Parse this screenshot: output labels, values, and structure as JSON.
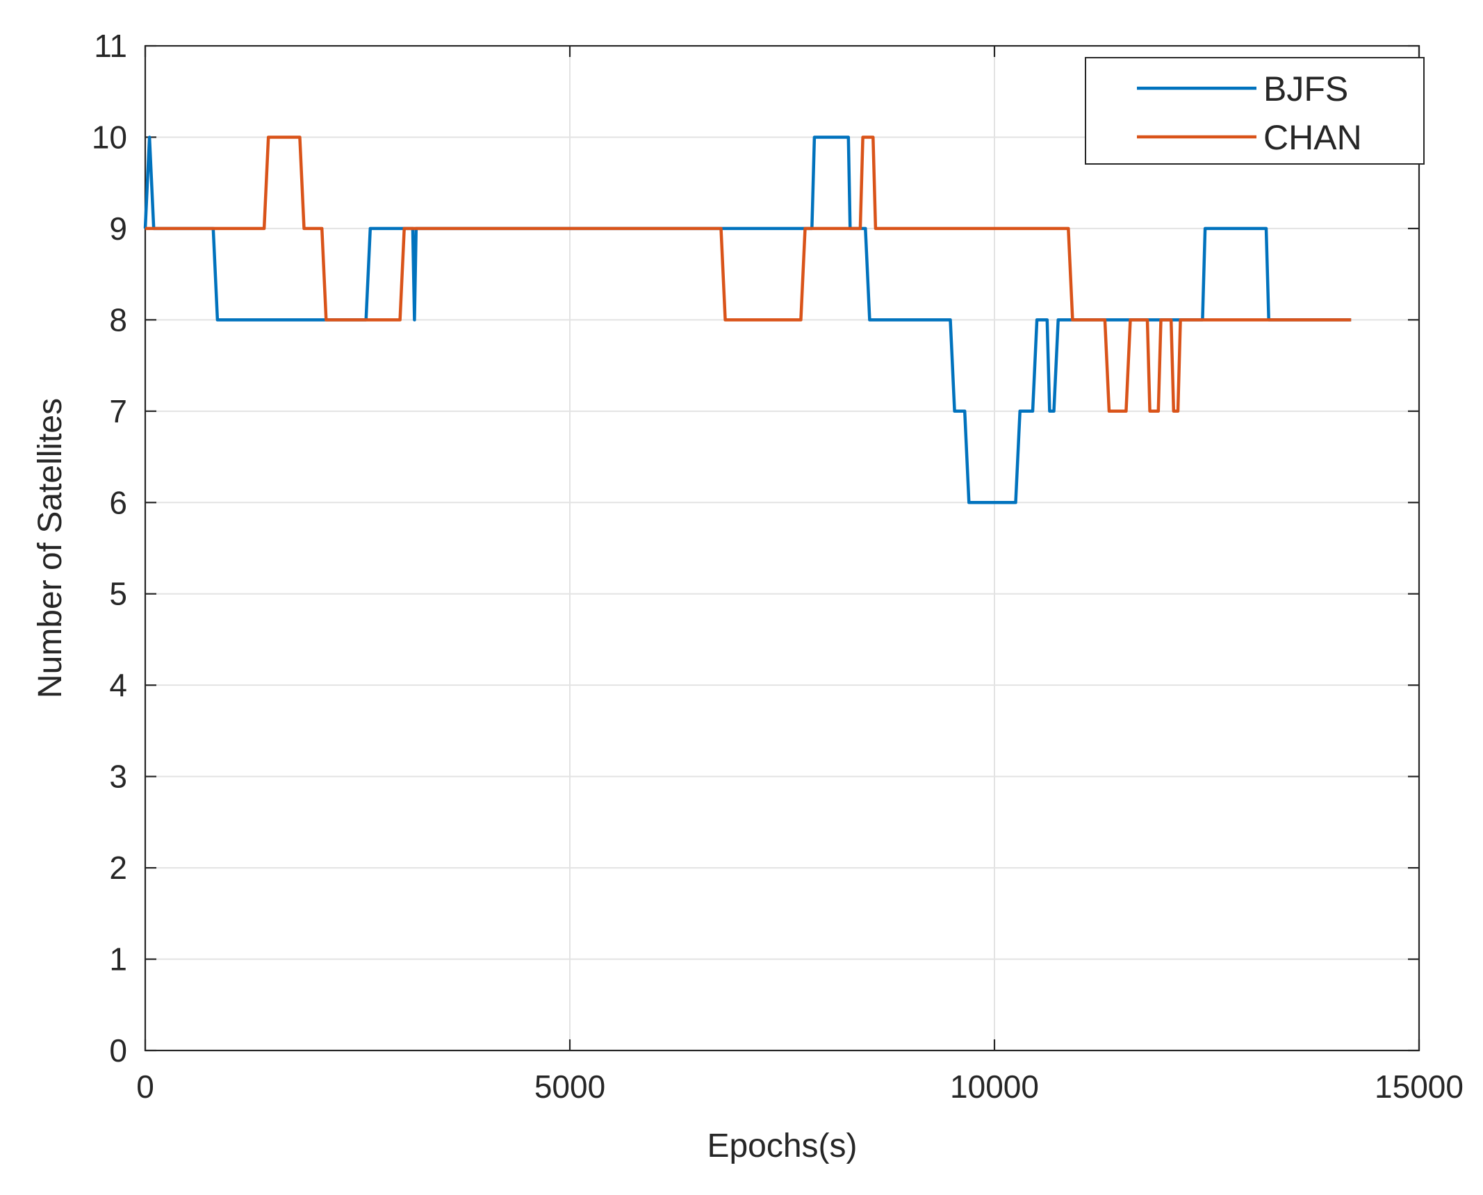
{
  "chart_data": {
    "type": "line",
    "title": "",
    "xlabel": "Epochs(s)",
    "ylabel": "Number of Satellites",
    "xlim": [
      0,
      15000
    ],
    "ylim": [
      0,
      11
    ],
    "xticks": [
      0,
      5000,
      10000,
      15000
    ],
    "yticks": [
      0,
      1,
      2,
      3,
      4,
      5,
      6,
      7,
      8,
      9,
      10,
      11
    ],
    "xtick_labels": [
      "0",
      "5000",
      "10000",
      "15000"
    ],
    "ytick_labels": [
      "0",
      "1",
      "2",
      "3",
      "4",
      "5",
      "6",
      "7",
      "8",
      "9",
      "10",
      "11"
    ],
    "grid": true,
    "legend_position": "top-right",
    "series": [
      {
        "name": "BJFS",
        "color": "#0072BD",
        "x": [
          0,
          50,
          100,
          800,
          850,
          2600,
          2650,
          3150,
          3170,
          3190,
          3210,
          7850,
          7880,
          8280,
          8300,
          8480,
          8530,
          9480,
          9530,
          9650,
          9700,
          10250,
          10300,
          10450,
          10500,
          10620,
          10650,
          10700,
          10750,
          10850,
          12450,
          12480,
          13200,
          13230,
          14200
        ],
        "y": [
          9,
          10,
          9,
          9,
          8,
          8,
          9,
          9,
          8,
          9,
          9,
          9,
          10,
          10,
          9,
          9,
          8,
          8,
          7,
          7,
          6,
          6,
          7,
          7,
          8,
          8,
          7,
          7,
          8,
          8,
          8,
          9,
          9,
          8,
          8
        ]
      },
      {
        "name": "CHAN",
        "color": "#D95319",
        "x": [
          0,
          1400,
          1450,
          1820,
          1870,
          2080,
          2130,
          3000,
          3050,
          6780,
          6830,
          7720,
          7770,
          8420,
          8450,
          8570,
          8600,
          10870,
          10920,
          11300,
          11350,
          11550,
          11600,
          11800,
          11830,
          11930,
          11960,
          12080,
          12110,
          12160,
          12190,
          14200
        ],
        "y": [
          9,
          9,
          10,
          10,
          9,
          9,
          8,
          8,
          9,
          9,
          8,
          8,
          9,
          9,
          10,
          10,
          9,
          9,
          8,
          8,
          7,
          7,
          8,
          8,
          7,
          7,
          8,
          8,
          7,
          7,
          8,
          8
        ]
      }
    ]
  }
}
